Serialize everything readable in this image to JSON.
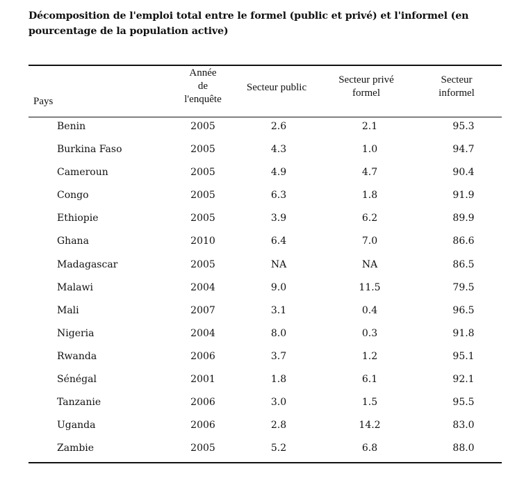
{
  "title": "Décomposition de l'emploi total entre le formel (public et privé) et l'informel (en pourcentage de la population active)",
  "headers": {
    "pays": "Pays",
    "annee": [
      "Année",
      "de",
      "l'enquête"
    ],
    "public": [
      "Secteur public"
    ],
    "prive": [
      "Secteur privé",
      "formel"
    ],
    "informel": [
      "Secteur",
      "informel"
    ]
  },
  "rows": [
    {
      "pays": "Benin",
      "annee": "2005",
      "public": "2.6",
      "prive": "2.1",
      "informel": "95.3"
    },
    {
      "pays": "Burkina Faso",
      "annee": "2005",
      "public": "4.3",
      "prive": "1.0",
      "informel": "94.7"
    },
    {
      "pays": "Cameroun",
      "annee": "2005",
      "public": "4.9",
      "prive": "4.7",
      "informel": "90.4"
    },
    {
      "pays": "Congo",
      "annee": "2005",
      "public": "6.3",
      "prive": "1.8",
      "informel": "91.9"
    },
    {
      "pays": "Ethiopie",
      "annee": "2005",
      "public": "3.9",
      "prive": "6.2",
      "informel": "89.9"
    },
    {
      "pays": "Ghana",
      "annee": "2010",
      "public": "6.4",
      "prive": "7.0",
      "informel": "86.6"
    },
    {
      "pays": "Madagascar",
      "annee": "2005",
      "public": "NA",
      "prive": "NA",
      "informel": "86.5"
    },
    {
      "pays": "Malawi",
      "annee": "2004",
      "public": "9.0",
      "prive": "11.5",
      "informel": "79.5"
    },
    {
      "pays": "Mali",
      "annee": "2007",
      "public": "3.1",
      "prive": "0.4",
      "informel": "96.5"
    },
    {
      "pays": "Nigeria",
      "annee": "2004",
      "public": "8.0",
      "prive": "0.3",
      "informel": "91.8"
    },
    {
      "pays": "Rwanda",
      "annee": "2006",
      "public": "3.7",
      "prive": "1.2",
      "informel": "95.1"
    },
    {
      "pays": "Sénégal",
      "annee": "2001",
      "public": "1.8",
      "prive": "6.1",
      "informel": "92.1"
    },
    {
      "pays": "Tanzanie",
      "annee": "2006",
      "public": "3.0",
      "prive": "1.5",
      "informel": "95.5"
    },
    {
      "pays": "Uganda",
      "annee": "2006",
      "public": "2.8",
      "prive": "14.2",
      "informel": "83.0"
    },
    {
      "pays": "Zambie",
      "annee": "2005",
      "public": "5.2",
      "prive": "6.8",
      "informel": "88.0"
    }
  ]
}
